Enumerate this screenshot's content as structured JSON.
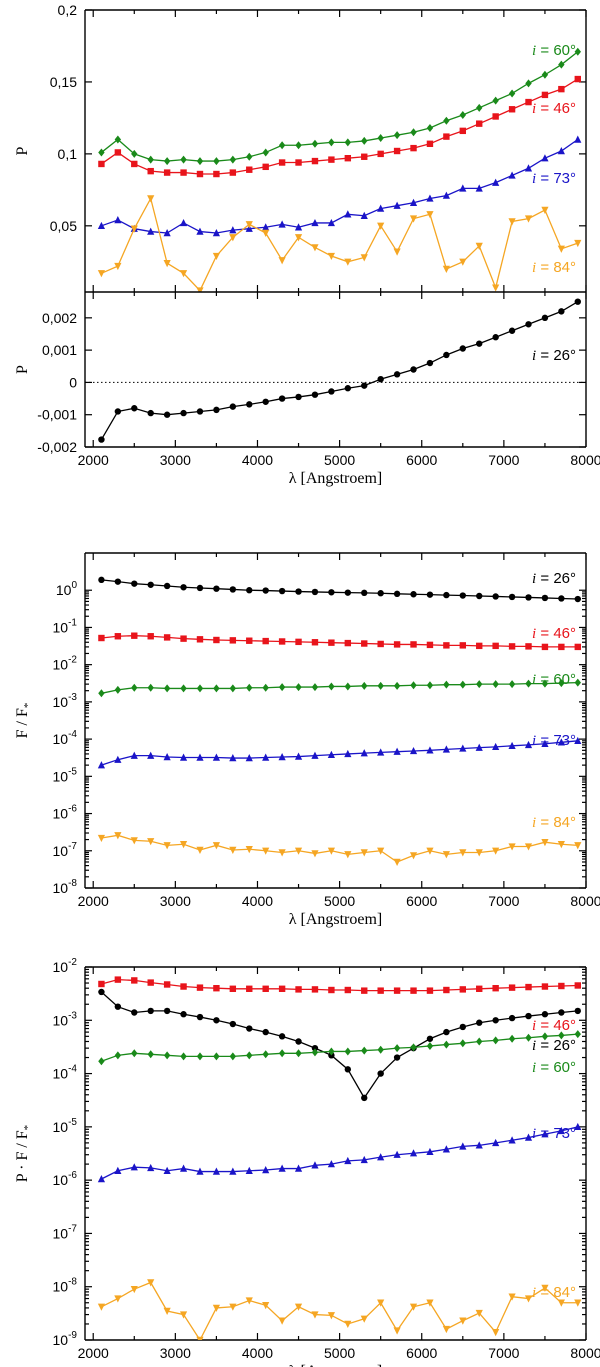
{
  "colors": {
    "i26": "#000000",
    "i46": "#e8141b",
    "i60": "#1a8a1a",
    "i73": "#1a14c8",
    "i84": "#f5a623"
  },
  "x_axis": {
    "ticks": [
      2000,
      3000,
      4000,
      5000,
      6000,
      7000,
      8000
    ],
    "tick_labels": [
      "2000",
      "3000",
      "4000",
      "5000",
      "6000",
      "7000",
      "8000"
    ],
    "label": "λ [Angstroem]"
  },
  "label_prefix": "i",
  "wavelengths": [
    2100,
    2300,
    2500,
    2700,
    2900,
    3100,
    3300,
    3500,
    3700,
    3900,
    4100,
    4300,
    4500,
    4700,
    4900,
    5100,
    5300,
    5500,
    5700,
    5900,
    6100,
    6300,
    6500,
    6700,
    6900,
    7100,
    7300,
    7500,
    7700,
    7900
  ],
  "chart_data": [
    {
      "id": "top-upper",
      "type": "line",
      "ylabel": "P",
      "xlim": [
        1900,
        8000
      ],
      "ylim": [
        0.004,
        0.2
      ],
      "yticks": [
        0.05,
        0.1,
        0.15,
        0.2
      ],
      "ytick_labels": [
        "0,05",
        "0,1",
        "0,15",
        "0,2"
      ],
      "series": [
        {
          "name": "i = 60°",
          "angle": "60°",
          "color_key": "i60",
          "marker": "diamond",
          "values": [
            0.101,
            0.11,
            0.1,
            0.096,
            0.095,
            0.096,
            0.095,
            0.095,
            0.096,
            0.098,
            0.101,
            0.106,
            0.106,
            0.107,
            0.108,
            0.108,
            0.109,
            0.111,
            0.113,
            0.115,
            0.118,
            0.123,
            0.127,
            0.132,
            0.137,
            0.142,
            0.149,
            0.155,
            0.162,
            0.171
          ]
        },
        {
          "name": "i = 46°",
          "angle": "46°",
          "color_key": "i46",
          "marker": "square",
          "values": [
            0.093,
            0.101,
            0.093,
            0.088,
            0.087,
            0.087,
            0.086,
            0.086,
            0.087,
            0.089,
            0.091,
            0.094,
            0.094,
            0.095,
            0.096,
            0.097,
            0.098,
            0.1,
            0.102,
            0.104,
            0.107,
            0.112,
            0.116,
            0.121,
            0.126,
            0.131,
            0.136,
            0.141,
            0.145,
            0.152
          ]
        },
        {
          "name": "i = 73°",
          "angle": "73°",
          "color_key": "i73",
          "marker": "triangle-up",
          "values": [
            0.05,
            0.054,
            0.048,
            0.046,
            0.045,
            0.052,
            0.046,
            0.045,
            0.047,
            0.048,
            0.049,
            0.051,
            0.049,
            0.052,
            0.052,
            0.058,
            0.057,
            0.062,
            0.064,
            0.066,
            0.069,
            0.071,
            0.076,
            0.076,
            0.08,
            0.085,
            0.09,
            0.097,
            0.102,
            0.11
          ]
        },
        {
          "name": "i = 84°",
          "angle": "84°",
          "color_key": "i84",
          "marker": "triangle-down",
          "values": [
            0.017,
            0.022,
            0.048,
            0.069,
            0.024,
            0.017,
            0.005,
            0.029,
            0.042,
            0.051,
            0.045,
            0.026,
            0.042,
            0.035,
            0.029,
            0.025,
            0.028,
            0.05,
            0.032,
            0.055,
            0.058,
            0.02,
            0.025,
            0.036,
            0.007,
            0.053,
            0.055,
            0.061,
            0.034,
            0.038
          ]
        }
      ]
    },
    {
      "id": "top-lower",
      "type": "line",
      "ylabel": "P",
      "xlim": [
        1900,
        8000
      ],
      "ylim": [
        -0.002,
        0.0028
      ],
      "yticks": [
        -0.002,
        -0.001,
        0,
        0.001,
        0.002
      ],
      "ytick_labels": [
        "-0,002",
        "-0,001",
        "0",
        "0,001",
        "0,002"
      ],
      "zero_line": true,
      "series": [
        {
          "name": "i = 26°",
          "angle": "26°",
          "color_key": "i26",
          "marker": "circle",
          "values": [
            -0.00177,
            -0.0009,
            -0.0008,
            -0.00095,
            -0.001,
            -0.00095,
            -0.0009,
            -0.00085,
            -0.00075,
            -0.00068,
            -0.0006,
            -0.0005,
            -0.00045,
            -0.00038,
            -0.00028,
            -0.00018,
            -0.0001,
            0.0001,
            0.00025,
            0.0004,
            0.0006,
            0.00085,
            0.00105,
            0.0012,
            0.0014,
            0.0016,
            0.0018,
            0.002,
            0.0022,
            0.0025
          ]
        }
      ]
    },
    {
      "id": "middle",
      "type": "line",
      "scale": "log",
      "ylabel": "F / F",
      "ylabel_sub": "*",
      "xlim": [
        1900,
        8000
      ],
      "ylim": [
        1e-08,
        10
      ],
      "yticks": [
        1e-08,
        1e-07,
        1e-06,
        1e-05,
        0.0001,
        0.001,
        0.01,
        0.1,
        1
      ],
      "ytick_exponents": [
        "-8",
        "-7",
        "-6",
        "-5",
        "-4",
        "-3",
        "-2",
        "-1",
        "0"
      ],
      "ytick_base": "10",
      "series": [
        {
          "name": "i = 26°",
          "angle": "26°",
          "color_key": "i26",
          "marker": "circle",
          "values": [
            1.9,
            1.7,
            1.5,
            1.4,
            1.3,
            1.2,
            1.15,
            1.1,
            1.05,
            1.0,
            0.98,
            0.95,
            0.92,
            0.9,
            0.88,
            0.86,
            0.85,
            0.83,
            0.8,
            0.78,
            0.76,
            0.74,
            0.72,
            0.7,
            0.68,
            0.66,
            0.64,
            0.62,
            0.6,
            0.58
          ]
        },
        {
          "name": "i = 46°",
          "angle": "46°",
          "color_key": "i46",
          "marker": "square",
          "values": [
            0.052,
            0.058,
            0.06,
            0.058,
            0.054,
            0.05,
            0.048,
            0.046,
            0.045,
            0.044,
            0.043,
            0.042,
            0.041,
            0.04,
            0.039,
            0.038,
            0.037,
            0.036,
            0.035,
            0.035,
            0.034,
            0.033,
            0.033,
            0.032,
            0.032,
            0.031,
            0.031,
            0.03,
            0.03,
            0.03
          ]
        },
        {
          "name": "i = 60°",
          "angle": "60°",
          "color_key": "i60",
          "marker": "diamond",
          "values": [
            0.0017,
            0.0021,
            0.0024,
            0.0024,
            0.0023,
            0.0023,
            0.0023,
            0.0023,
            0.0023,
            0.0024,
            0.0024,
            0.0025,
            0.0025,
            0.0025,
            0.0026,
            0.0026,
            0.0027,
            0.0027,
            0.0027,
            0.0028,
            0.0028,
            0.0029,
            0.0029,
            0.003,
            0.003,
            0.003,
            0.0031,
            0.0031,
            0.0032,
            0.0033
          ]
        },
        {
          "name": "i = 73°",
          "angle": "73°",
          "color_key": "i73",
          "marker": "triangle-up",
          "values": [
            2e-05,
            2.8e-05,
            3.6e-05,
            3.6e-05,
            3.3e-05,
            3.2e-05,
            3.2e-05,
            3.2e-05,
            3.1e-05,
            3.1e-05,
            3.2e-05,
            3.3e-05,
            3.4e-05,
            3.6e-05,
            3.8e-05,
            4e-05,
            4.2e-05,
            4.4e-05,
            4.6e-05,
            4.8e-05,
            5e-05,
            5.3e-05,
            5.6e-05,
            5.9e-05,
            6.2e-05,
            6.6e-05,
            7e-05,
            7.5e-05,
            8.2e-05,
            9e-05
          ]
        },
        {
          "name": "i = 84°",
          "angle": "84°",
          "color_key": "i84",
          "marker": "triangle-down",
          "values": [
            2.2e-07,
            2.6e-07,
            1.9e-07,
            1.8e-07,
            1.4e-07,
            1.5e-07,
            1.05e-07,
            1.4e-07,
            1.05e-07,
            1.1e-07,
            1e-07,
            9e-08,
            1e-07,
            8.5e-08,
            1e-07,
            8e-08,
            9e-08,
            1e-07,
            5e-08,
            7.5e-08,
            1e-07,
            8e-08,
            9e-08,
            9e-08,
            1e-07,
            1.3e-07,
            1.3e-07,
            1.7e-07,
            1.5e-07,
            1.4e-07
          ]
        }
      ]
    },
    {
      "id": "bottom",
      "type": "line",
      "scale": "log",
      "ylabel": "P · F / F",
      "ylabel_sub": "*",
      "xlim": [
        1900,
        8000
      ],
      "ylim": [
        1e-09,
        0.01
      ],
      "yticks": [
        1e-09,
        1e-08,
        1e-07,
        1e-06,
        1e-05,
        0.0001,
        0.001,
        0.01
      ],
      "ytick_exponents": [
        "-9",
        "-8",
        "-7",
        "-6",
        "-5",
        "-4",
        "-3",
        "-2"
      ],
      "ytick_base": "10",
      "series": [
        {
          "name": "i = 46°",
          "angle": "46°",
          "color_key": "i46",
          "marker": "square",
          "values": [
            0.0048,
            0.0058,
            0.0056,
            0.0051,
            0.0047,
            0.0043,
            0.0041,
            0.004,
            0.0039,
            0.0039,
            0.0039,
            0.0039,
            0.0038,
            0.0038,
            0.0037,
            0.0037,
            0.0036,
            0.0036,
            0.0036,
            0.0036,
            0.0036,
            0.0037,
            0.0038,
            0.0039,
            0.004,
            0.0041,
            0.0042,
            0.0043,
            0.0044,
            0.0045
          ]
        },
        {
          "name": "i = 26°",
          "angle": "26°",
          "color_key": "i26",
          "marker": "circle",
          "values": [
            0.0034,
            0.0018,
            0.0014,
            0.0015,
            0.0015,
            0.0013,
            0.00115,
            0.001,
            0.00085,
            0.0007,
            0.0006,
            0.0005,
            0.0004,
            0.0003,
            0.00022,
            0.00012,
            3.5e-05,
            0.0001,
            0.0002,
            0.0003,
            0.00045,
            0.0006,
            0.00075,
            0.0009,
            0.001,
            0.0011,
            0.0012,
            0.0013,
            0.0014,
            0.0015
          ]
        },
        {
          "name": "i = 60°",
          "angle": "60°",
          "color_key": "i60",
          "marker": "diamond",
          "values": [
            0.00017,
            0.00022,
            0.00024,
            0.00023,
            0.00022,
            0.00021,
            0.00021,
            0.00021,
            0.00021,
            0.00022,
            0.00023,
            0.00024,
            0.00024,
            0.00025,
            0.00026,
            0.00026,
            0.00027,
            0.00028,
            0.0003,
            0.00031,
            0.00033,
            0.00035,
            0.00037,
            0.0004,
            0.00042,
            0.00045,
            0.00047,
            0.0005,
            0.00052,
            0.00055
          ]
        },
        {
          "name": "i = 73°",
          "angle": "73°",
          "color_key": "i73",
          "marker": "triangle-up",
          "values": [
            1.05e-06,
            1.5e-06,
            1.75e-06,
            1.7e-06,
            1.5e-06,
            1.65e-06,
            1.45e-06,
            1.45e-06,
            1.45e-06,
            1.5e-06,
            1.55e-06,
            1.65e-06,
            1.65e-06,
            1.9e-06,
            2e-06,
            2.3e-06,
            2.4e-06,
            2.7e-06,
            3e-06,
            3.2e-06,
            3.4e-06,
            3.8e-06,
            4.3e-06,
            4.5e-06,
            5e-06,
            5.6e-06,
            6.3e-06,
            7.3e-06,
            8.4e-06,
            1e-05
          ]
        },
        {
          "name": "i = 84°",
          "angle": "84°",
          "color_key": "i84",
          "marker": "triangle-down",
          "values": [
            4.2e-09,
            6e-09,
            9e-09,
            1.2e-08,
            3.5e-09,
            3e-09,
            1e-09,
            4e-09,
            4.2e-09,
            5.5e-09,
            4.5e-09,
            2.3e-09,
            4.2e-09,
            3e-09,
            2.9e-09,
            2e-09,
            2.5e-09,
            5e-09,
            1.5e-09,
            4.2e-09,
            5e-09,
            1.6e-09,
            2.3e-09,
            3.2e-09,
            1.4e-09,
            6.5e-09,
            6e-09,
            9.5e-09,
            5e-09,
            5e-09
          ]
        }
      ]
    }
  ]
}
